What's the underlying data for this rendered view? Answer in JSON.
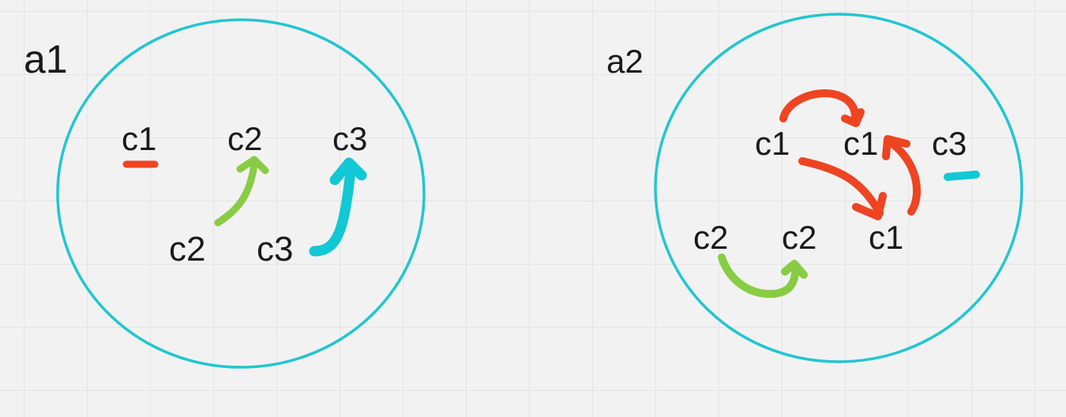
{
  "colors": {
    "red": "#ee4422",
    "green": "#88cc44",
    "cyan": "#11c8d4",
    "circle": "#22c6d0",
    "text": "#1a1a1a",
    "background": "#f2f2f2"
  },
  "panel_a1": {
    "title": "a1",
    "labels": {
      "top_c1": "c1",
      "top_c2": "c2",
      "top_c3": "c3",
      "bottom_c2": "c2",
      "bottom_c3": "c3"
    }
  },
  "panel_a2": {
    "title": "a2",
    "labels": {
      "left_c1": "c1",
      "mid_c1": "c1",
      "right_c3": "c3",
      "left_c2": "c2",
      "right_c2": "c2",
      "lower_c1": "c1"
    }
  }
}
